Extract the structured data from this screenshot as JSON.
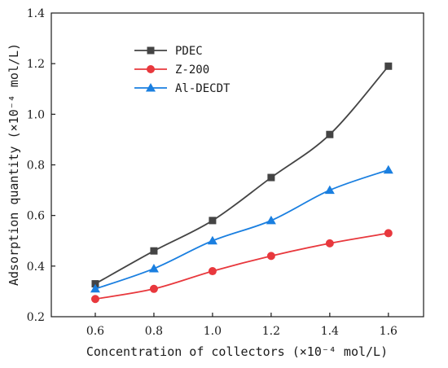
{
  "chart_data": {
    "type": "line",
    "title": "",
    "xlabel": "Concentration of collectors (×10⁻⁴ mol/L)",
    "ylabel": "Adsorption quantity (×10⁻⁴ mol/L)",
    "xlim": [
      0.45,
      1.72
    ],
    "ylim": [
      0.2,
      1.4
    ],
    "xticks": [
      "0.6",
      "0.8",
      "1.0",
      "1.2",
      "1.4",
      "1.6"
    ],
    "yticks": [
      "0.2",
      "0.4",
      "0.6",
      "0.8",
      "1.0",
      "1.2",
      "1.4"
    ],
    "x": [
      0.6,
      0.8,
      1.0,
      1.2,
      1.4,
      1.6
    ],
    "grid": false,
    "legend_position": "top-left",
    "series": [
      {
        "name": "PDEC",
        "values": [
          0.33,
          0.46,
          0.58,
          0.75,
          0.92,
          1.19
        ],
        "color": "#444444",
        "marker": "square"
      },
      {
        "name": "Z-200",
        "values": [
          0.27,
          0.31,
          0.38,
          0.44,
          0.49,
          0.53
        ],
        "color": "#e8383d",
        "marker": "circle"
      },
      {
        "name": "Al-DECDT",
        "values": [
          0.31,
          0.39,
          0.5,
          0.58,
          0.7,
          0.78
        ],
        "color": "#1a7fe0",
        "marker": "triangle"
      }
    ]
  }
}
